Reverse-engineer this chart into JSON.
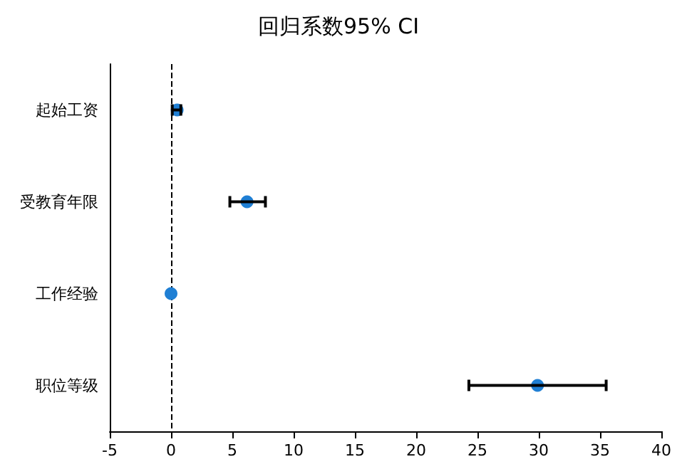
{
  "chart_data": {
    "type": "scatter",
    "title": "回归系数95% CI",
    "orientation": "horizontal",
    "categories": [
      "起始工资",
      "受教育年限",
      "工作经验",
      "职位等级"
    ],
    "values": [
      0.5,
      6.2,
      0.0,
      29.9
    ],
    "errors": [
      [
        0.1,
        0.8
      ],
      [
        4.8,
        7.7
      ],
      null,
      [
        24.3,
        35.5
      ]
    ],
    "color": "#1f7fd4",
    "marker": "circle",
    "grid": false,
    "xlim": [
      -5,
      40
    ],
    "xticks": [
      -5,
      0,
      5,
      10,
      15,
      20,
      25,
      30,
      35,
      40
    ],
    "ref_lines": [
      {
        "axis": "x",
        "value": 0,
        "line_style": "dashed",
        "color": "#000000"
      }
    ]
  }
}
